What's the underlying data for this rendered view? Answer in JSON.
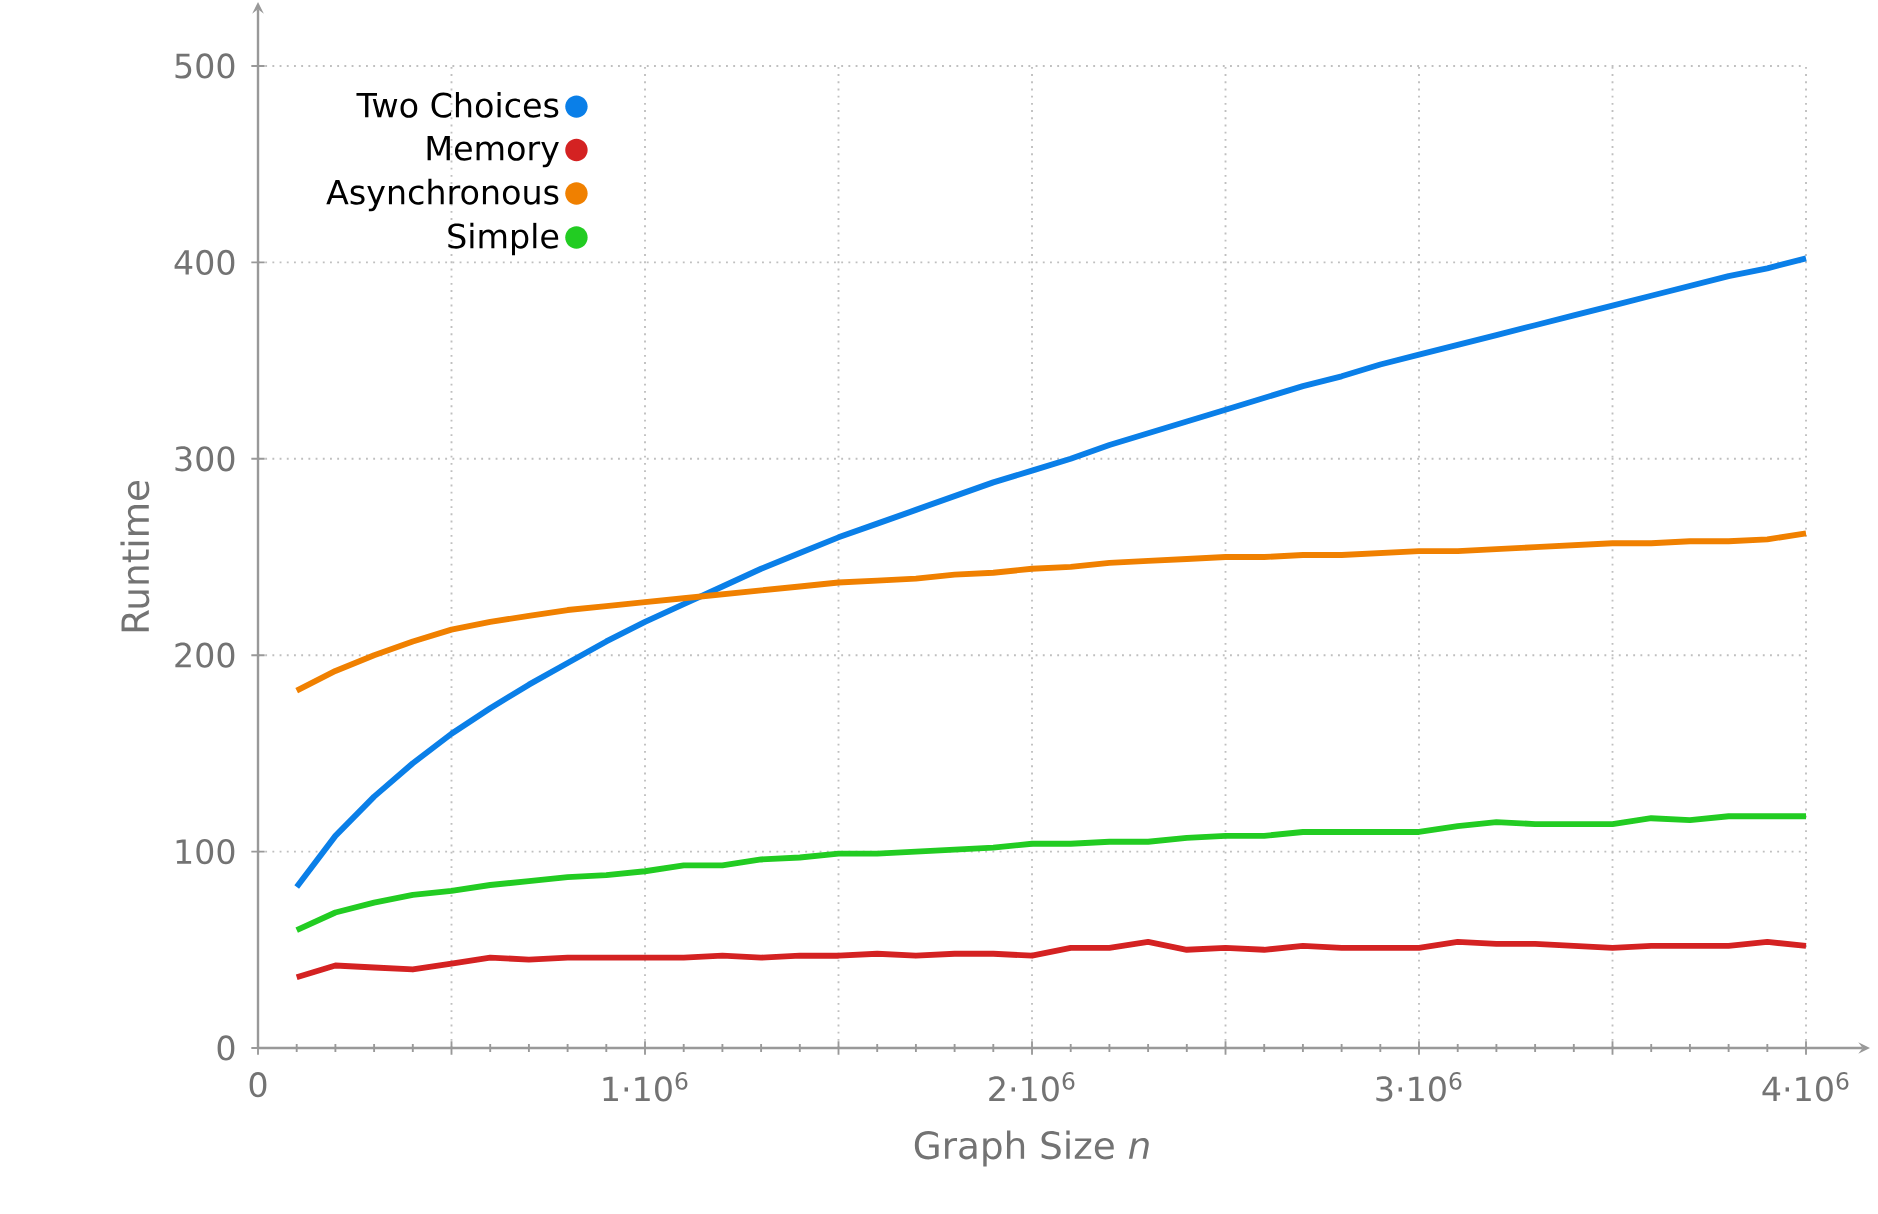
{
  "chart_data": {
    "type": "line",
    "xlabel": "Graph Size *n*",
    "ylabel": "Runtime",
    "x": [
      100000,
      200000,
      300000,
      400000,
      500000,
      600000,
      700000,
      800000,
      900000,
      1000000,
      1100000,
      1200000,
      1300000,
      1400000,
      1500000,
      1600000,
      1700000,
      1800000,
      1900000,
      2000000,
      2100000,
      2200000,
      2300000,
      2400000,
      2500000,
      2600000,
      2700000,
      2800000,
      2900000,
      3000000,
      3100000,
      3200000,
      3300000,
      3400000,
      3500000,
      3600000,
      3700000,
      3800000,
      3900000,
      4000000
    ],
    "series": [
      {
        "name": "Two Choices",
        "color": "#0a7fe8",
        "values": [
          82,
          108,
          128,
          145,
          160,
          173,
          185,
          196,
          207,
          217,
          226,
          235,
          244,
          252,
          260,
          267,
          274,
          281,
          288,
          294,
          300,
          307,
          313,
          319,
          325,
          331,
          337,
          342,
          348,
          353,
          358,
          363,
          368,
          373,
          378,
          383,
          388,
          393,
          397,
          402
        ]
      },
      {
        "name": "Memory",
        "color": "#d42222",
        "values": [
          36,
          42,
          41,
          40,
          43,
          46,
          45,
          46,
          46,
          46,
          46,
          47,
          46,
          47,
          47,
          48,
          47,
          48,
          48,
          47,
          51,
          51,
          54,
          50,
          51,
          50,
          52,
          51,
          51,
          51,
          54,
          53,
          53,
          52,
          51,
          52,
          52,
          52,
          54,
          52
        ]
      },
      {
        "name": "Asynchronous",
        "color": "#f08000",
        "values": [
          182,
          192,
          200,
          207,
          213,
          217,
          220,
          223,
          225,
          227,
          229,
          231,
          233,
          235,
          237,
          238,
          239,
          241,
          242,
          244,
          245,
          247,
          248,
          249,
          250,
          250,
          251,
          251,
          252,
          253,
          253,
          254,
          255,
          256,
          257,
          257,
          258,
          258,
          259,
          262
        ]
      },
      {
        "name": "Simple",
        "color": "#22cc22",
        "values": [
          60,
          69,
          74,
          78,
          80,
          83,
          85,
          87,
          88,
          90,
          93,
          93,
          96,
          97,
          99,
          99,
          100,
          101,
          102,
          104,
          104,
          105,
          105,
          107,
          108,
          108,
          110,
          110,
          110,
          110,
          113,
          115,
          114,
          114,
          114,
          117,
          116,
          118,
          118,
          118
        ]
      }
    ],
    "xlim": [
      0,
      4000000
    ],
    "ylim": [
      0,
      500
    ],
    "xticks": [
      0,
      {
        "value": 500000,
        "label": null
      },
      {
        "value": 1000000,
        "label": "1·10$^{6}$"
      },
      {
        "value": 1500000,
        "label": null
      },
      {
        "value": 2000000,
        "label": "2·10$^{6}$"
      },
      {
        "value": 2500000,
        "label": null
      },
      {
        "value": 3000000,
        "label": "3·10$^{6}$"
      },
      {
        "value": 3500000,
        "label": null
      },
      {
        "value": 4000000,
        "label": "4·10$^{6}$"
      }
    ],
    "yticks": [
      0,
      100,
      200,
      300,
      400,
      500
    ],
    "grid": true,
    "legend": "top left",
    "marker": "none",
    "line_style": "solid"
  }
}
